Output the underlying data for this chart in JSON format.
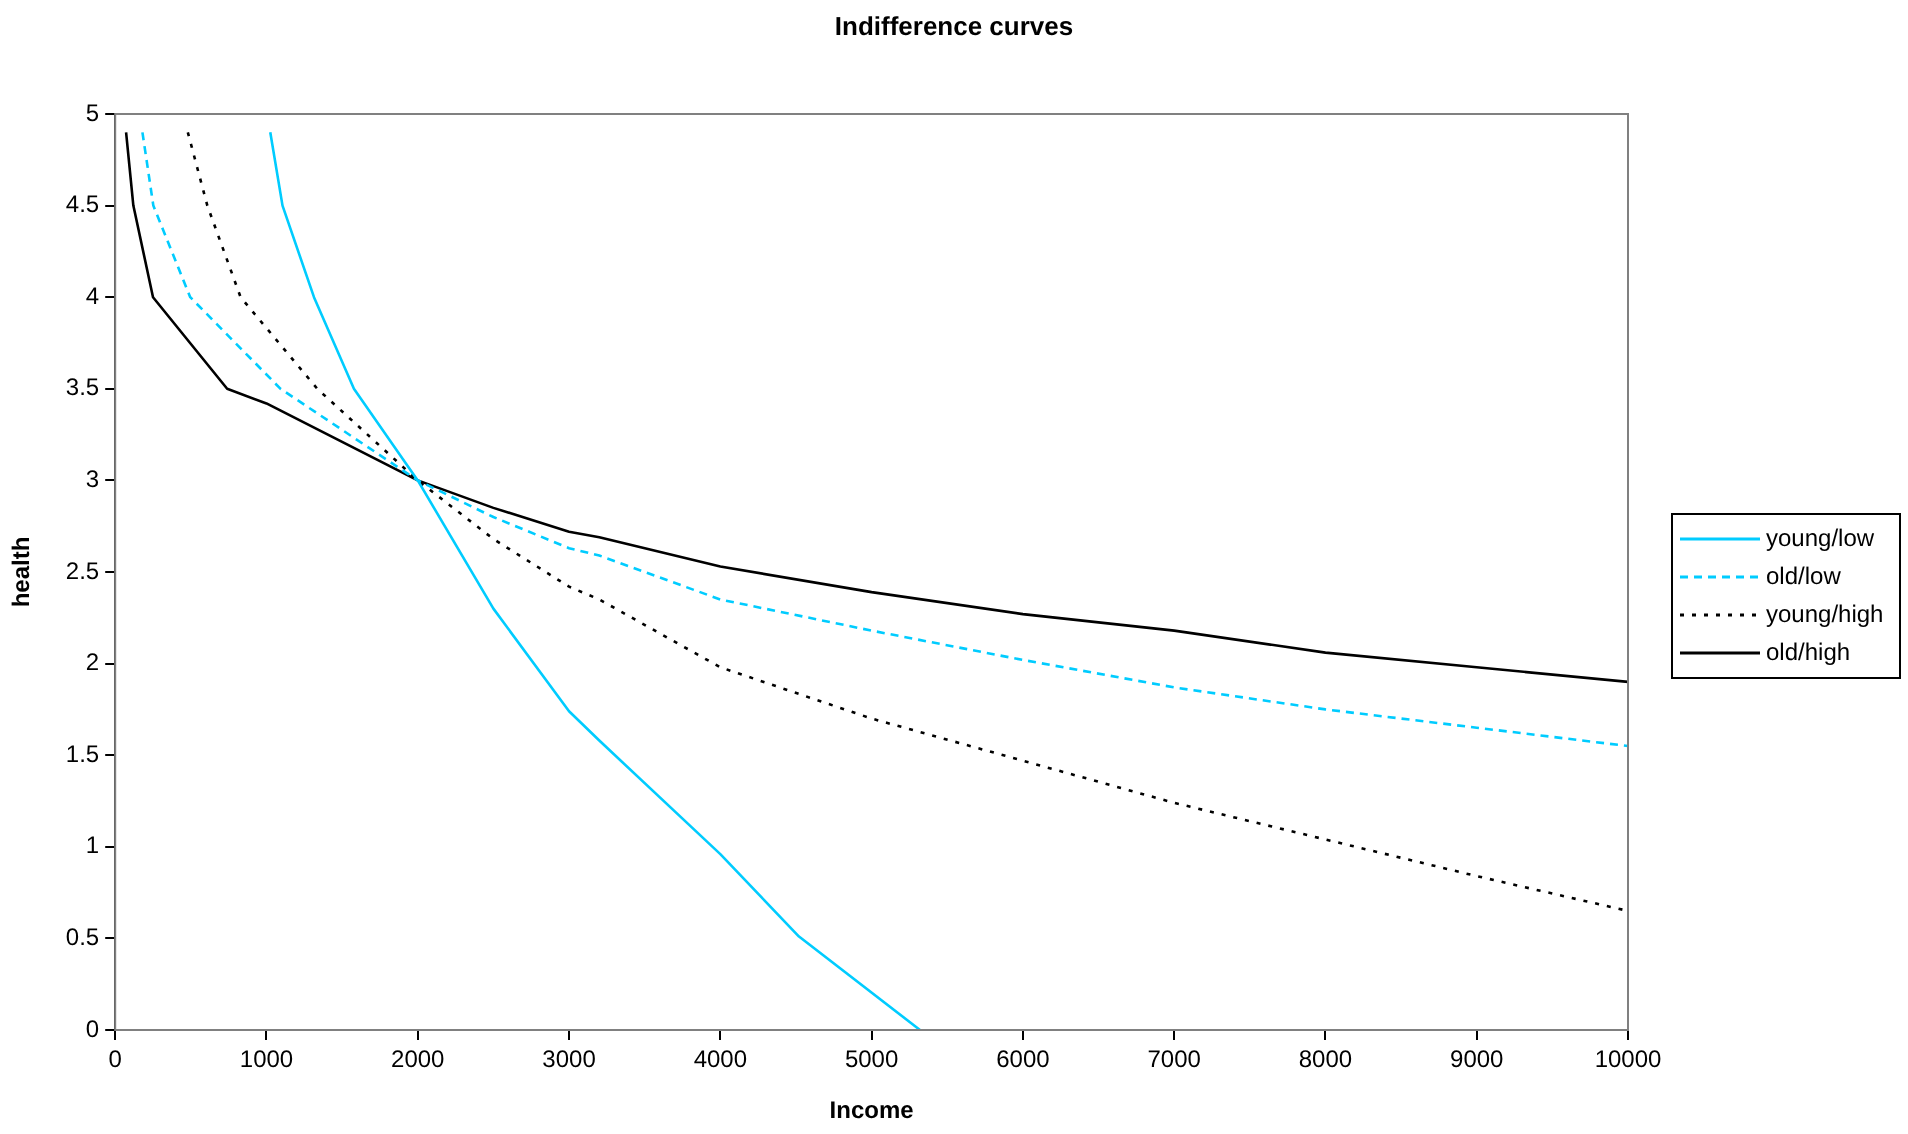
{
  "chart_data": {
    "type": "line",
    "title": "Indifference curves",
    "xlabel": "Income",
    "ylabel": "health",
    "xlim": [
      0,
      10000
    ],
    "xticks": [
      0,
      1000,
      2000,
      3000,
      4000,
      5000,
      6000,
      7000,
      8000,
      9000,
      10000
    ],
    "ylim": [
      0,
      5
    ],
    "yticks": [
      0,
      0.5,
      1,
      1.5,
      2,
      2.5,
      3,
      3.5,
      4,
      4.5,
      5
    ],
    "grid": false,
    "legend": "right",
    "marker": "none",
    "series": [
      {
        "name": "young/low",
        "color": "#00ccff",
        "line_style": "solid",
        "x": [
          1025,
          1106,
          1314,
          1578,
          2000,
          2500,
          3000,
          3200,
          4000,
          4520,
          5320
        ],
        "values": [
          4.9,
          4.5,
          4.0,
          3.5,
          3.0,
          2.3,
          1.74,
          1.58,
          0.96,
          0.51,
          0
        ]
      },
      {
        "name": "old/low",
        "color": "#00ccff",
        "line_style": "dashed",
        "x": [
          180,
          252,
          496,
          1093,
          2000,
          2500,
          3000,
          3200,
          4000,
          5000,
          6000,
          7000,
          8000,
          9000,
          10000
        ],
        "values": [
          4.9,
          4.5,
          4.0,
          3.5,
          3.0,
          2.8,
          2.63,
          2.59,
          2.35,
          2.18,
          2.02,
          1.87,
          1.75,
          1.65,
          1.55
        ]
      },
      {
        "name": "young/high",
        "color": "#000000",
        "line_style": "dotted",
        "x": [
          480,
          609,
          829,
          1336,
          2000,
          2500,
          3000,
          3200,
          4000,
          5000,
          6000,
          7000,
          8000,
          9000,
          10000
        ],
        "values": [
          4.9,
          4.5,
          4.0,
          3.5,
          3.0,
          2.68,
          2.42,
          2.35,
          1.98,
          1.7,
          1.47,
          1.24,
          1.04,
          0.84,
          0.65
        ]
      },
      {
        "name": "old/high",
        "color": "#000000",
        "line_style": "solid",
        "x": [
          72,
          120,
          250,
          740,
          1000,
          2000,
          2500,
          3000,
          3200,
          4000,
          5000,
          6000,
          7000,
          8000,
          9000,
          10000
        ],
        "values": [
          4.9,
          4.5,
          4.0,
          3.5,
          3.42,
          3.0,
          2.85,
          2.72,
          2.69,
          2.53,
          2.39,
          2.27,
          2.18,
          2.06,
          1.98,
          1.9
        ]
      }
    ]
  }
}
